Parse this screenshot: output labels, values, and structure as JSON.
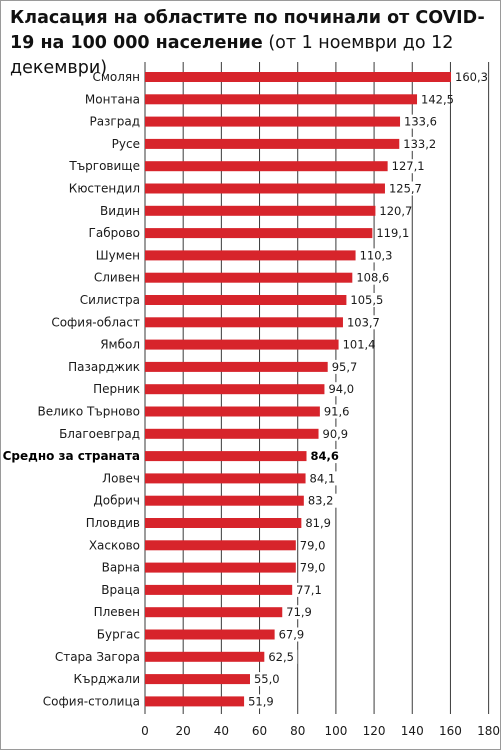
{
  "title": {
    "bold": "Класация на областите по починали от COVID-19 на 100 000 население",
    "sub": "(от 1 ноември до 12 декември)"
  },
  "colors": {
    "bar": "#d7242b",
    "highlight_bar": "#d7242b",
    "grid": "#3a3a3a",
    "text": "#1a1a1a"
  },
  "chart_data": {
    "type": "bar",
    "orientation": "horizontal",
    "title": "Класация на областите по починали от COVID-19 на 100 000 население (от 1 ноември до 12 декември)",
    "categories": [
      "Смолян",
      "Монтана",
      "Разград",
      "Русе",
      "Търговище",
      "Кюстендил",
      "Видин",
      "Габрово",
      "Шумен",
      "Сливен",
      "Силистра",
      "София-област",
      "Ямбол",
      "Пазарджик",
      "Перник",
      "Велико Търново",
      "Благоевград",
      "Средно за страната",
      "Ловеч",
      "Добрич",
      "Пловдив",
      "Хасково",
      "Варна",
      "Враца",
      "Плевен",
      "Бургас",
      "Стара Загора",
      "Кърджали",
      "София-столица"
    ],
    "values": [
      160.3,
      142.5,
      133.6,
      133.2,
      127.1,
      125.7,
      120.7,
      119.1,
      110.3,
      108.6,
      105.5,
      103.7,
      101.4,
      95.7,
      94.0,
      91.6,
      90.9,
      84.6,
      84.1,
      83.2,
      81.9,
      79.0,
      79.0,
      77.1,
      71.9,
      67.9,
      62.5,
      55.0,
      51.9
    ],
    "value_labels": [
      "160,3",
      "142,5",
      "133,6",
      "133,2",
      "127,1",
      "125,7",
      "120,7",
      "119,1",
      "110,3",
      "108,6",
      "105,5",
      "103,7",
      "101,4",
      "95,7",
      "94,0",
      "91,6",
      "90,9",
      "84,6",
      "84,1",
      "83,2",
      "81,9",
      "79,0",
      "79,0",
      "77,1",
      "71,9",
      "67,9",
      "62,5",
      "55,0",
      "51,9"
    ],
    "highlight_category": "Средно за страната",
    "xlim": [
      0,
      180
    ],
    "xticks": [
      0,
      20,
      40,
      60,
      80,
      100,
      120,
      140,
      160,
      180
    ],
    "grid": true,
    "xlabel": "",
    "ylabel": ""
  }
}
